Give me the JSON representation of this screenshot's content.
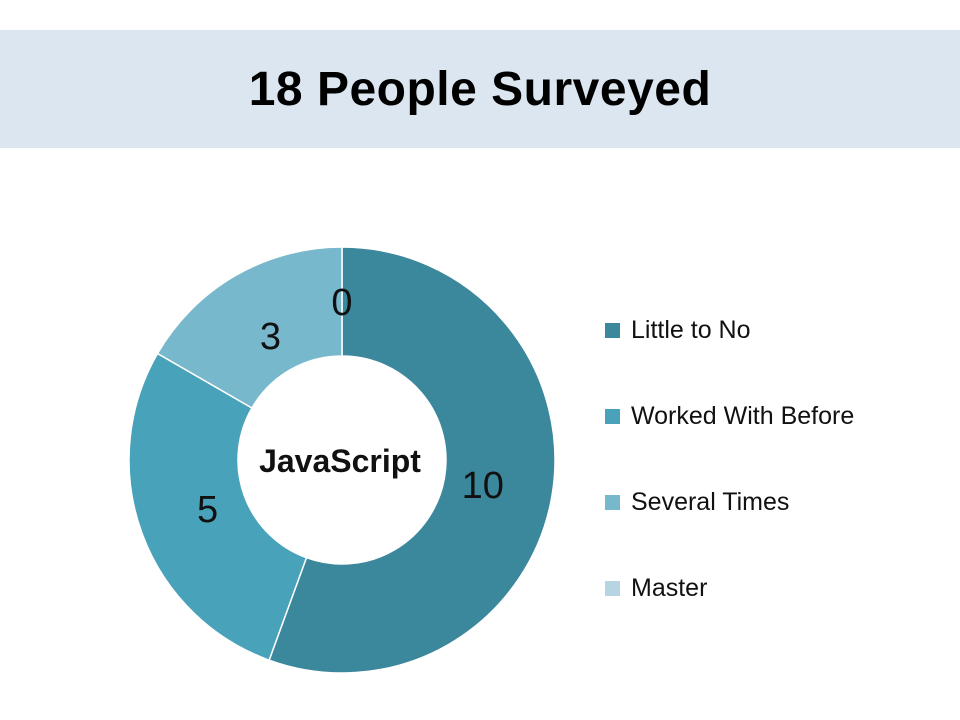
{
  "title": "18 People Surveyed",
  "chart_data": {
    "type": "pie",
    "style": "doughnut",
    "center_label": "JavaScript",
    "categories": [
      "Little to No",
      "Worked With Before",
      "Several Times",
      "Master"
    ],
    "values": [
      10,
      5,
      3,
      0
    ],
    "colors": [
      "#3b879b",
      "#48a2b9",
      "#78b8cd",
      "#b6d4e2"
    ],
    "legend_position": "right",
    "data_labels": true
  }
}
